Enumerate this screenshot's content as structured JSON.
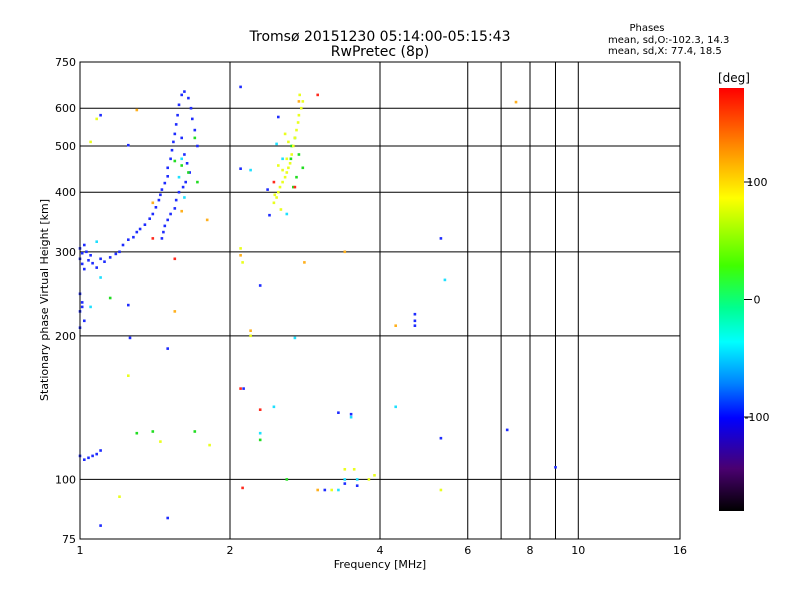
{
  "chart_data": {
    "type": "scatter",
    "title": "Tromsø 20151230 05:14:00-05:15:43",
    "subtitle": "RwPretec (8p)",
    "xlabel": "Frequency [MHz]",
    "ylabel": "Stationary phase Virtual Height [km]",
    "x_scale": "log",
    "y_scale": "log",
    "xlim": [
      1,
      16
    ],
    "ylim": [
      75,
      750
    ],
    "x_ticks": [
      1,
      2,
      4,
      6,
      8,
      10,
      16
    ],
    "x_minor_ticks": [
      7,
      9
    ],
    "y_ticks": [
      75,
      100,
      200,
      300,
      400,
      500,
      600,
      750
    ],
    "grid": true,
    "stats": {
      "heading": "Phases",
      "o_line": "mean, sd,O:-102.3, 14.3",
      "x_line": "mean, sd,X:  77.4, 18.5"
    },
    "colorbar": {
      "label": "[deg]",
      "range": [
        -180,
        180
      ],
      "ticks": [
        100,
        0,
        -100
      ]
    },
    "series": [
      {
        "color": "#1e2cff",
        "points": [
          [
            1.0,
            305
          ],
          [
            1.01,
            298
          ],
          [
            1.02,
            310
          ],
          [
            1.0,
            290
          ],
          [
            1.03,
            300
          ],
          [
            1.04,
            288
          ],
          [
            1.05,
            295
          ],
          [
            1.01,
            283
          ],
          [
            1.02,
            276
          ],
          [
            1.06,
            284
          ],
          [
            1.08,
            278
          ],
          [
            1.1,
            290
          ],
          [
            1.12,
            286
          ],
          [
            1.15,
            292
          ],
          [
            1.18,
            297
          ],
          [
            1.2,
            300
          ],
          [
            1.22,
            310
          ],
          [
            1.25,
            318
          ],
          [
            1.28,
            322
          ],
          [
            1.3,
            330
          ],
          [
            1.32,
            335
          ],
          [
            1.35,
            342
          ],
          [
            1.38,
            352
          ],
          [
            1.4,
            360
          ],
          [
            1.42,
            372
          ],
          [
            1.44,
            385
          ],
          [
            1.45,
            395
          ],
          [
            1.46,
            405
          ],
          [
            1.48,
            418
          ],
          [
            1.5,
            432
          ],
          [
            1.5,
            450
          ],
          [
            1.52,
            470
          ],
          [
            1.53,
            490
          ],
          [
            1.54,
            510
          ],
          [
            1.55,
            530
          ],
          [
            1.56,
            555
          ],
          [
            1.57,
            580
          ],
          [
            1.58,
            610
          ],
          [
            1.6,
            640
          ],
          [
            1.62,
            650
          ],
          [
            1.65,
            630
          ],
          [
            1.67,
            600
          ],
          [
            1.68,
            570
          ],
          [
            1.7,
            540
          ],
          [
            1.72,
            500
          ],
          [
            1.6,
            520
          ],
          [
            1.62,
            480
          ],
          [
            1.64,
            460
          ],
          [
            1.66,
            440
          ],
          [
            1.63,
            420
          ],
          [
            1.61,
            410
          ],
          [
            1.58,
            400
          ],
          [
            1.56,
            385
          ],
          [
            1.55,
            370
          ],
          [
            1.52,
            360
          ],
          [
            1.5,
            350
          ],
          [
            1.48,
            340
          ],
          [
            1.47,
            330
          ],
          [
            1.46,
            320
          ],
          [
            1.0,
            245
          ],
          [
            1.01,
            235
          ],
          [
            1.0,
            225
          ],
          [
            1.02,
            215
          ],
          [
            1.0,
            208
          ],
          [
            1.01,
            230
          ],
          [
            1.0,
            112
          ],
          [
            1.02,
            110
          ],
          [
            1.04,
            111
          ],
          [
            1.06,
            112
          ],
          [
            1.08,
            113
          ],
          [
            1.1,
            115
          ],
          [
            1.25,
            502
          ],
          [
            1.25,
            232
          ],
          [
            1.26,
            198
          ],
          [
            1.5,
            188
          ],
          [
            1.5,
            83
          ],
          [
            1.1,
            80
          ],
          [
            1.1,
            580
          ],
          [
            2.1,
            665
          ],
          [
            2.1,
            448
          ],
          [
            2.13,
            155
          ],
          [
            3.3,
            138
          ],
          [
            3.5,
            137
          ],
          [
            5.3,
            320
          ],
          [
            5.3,
            122
          ],
          [
            4.7,
            222
          ],
          [
            4.7,
            215
          ],
          [
            4.7,
            210
          ],
          [
            7.2,
            127
          ],
          [
            9.0,
            106
          ],
          [
            3.4,
            98
          ],
          [
            3.6,
            97
          ],
          [
            3.1,
            95
          ],
          [
            2.4,
            358
          ],
          [
            2.3,
            255
          ],
          [
            2.5,
            575
          ],
          [
            2.38,
            405
          ]
        ]
      },
      {
        "color": "#1ee0ff",
        "points": [
          [
            1.6,
            470
          ],
          [
            1.58,
            430
          ],
          [
            1.62,
            390
          ],
          [
            2.2,
            445
          ],
          [
            2.3,
            125
          ],
          [
            2.45,
            142
          ],
          [
            2.6,
            360
          ],
          [
            2.7,
            198
          ],
          [
            4.3,
            142
          ],
          [
            5.4,
            262
          ],
          [
            3.5,
            135
          ],
          [
            3.6,
            100
          ],
          [
            3.4,
            100
          ],
          [
            3.3,
            95
          ],
          [
            1.05,
            230
          ],
          [
            1.1,
            265
          ],
          [
            1.08,
            315
          ],
          [
            2.55,
            470
          ],
          [
            2.48,
            505
          ]
        ]
      },
      {
        "color": "#22dd22",
        "points": [
          [
            1.55,
            465
          ],
          [
            1.6,
            455
          ],
          [
            1.65,
            440
          ],
          [
            1.7,
            520
          ],
          [
            1.72,
            420
          ],
          [
            1.3,
            125
          ],
          [
            1.4,
            126
          ],
          [
            1.7,
            126
          ],
          [
            2.3,
            121
          ],
          [
            2.6,
            100
          ],
          [
            2.7,
            520
          ],
          [
            2.75,
            480
          ],
          [
            2.8,
            450
          ],
          [
            2.72,
            430
          ],
          [
            2.68,
            410
          ],
          [
            2.65,
            470
          ],
          [
            2.66,
            500
          ],
          [
            1.15,
            240
          ]
        ]
      },
      {
        "color": "#eaff1e",
        "points": [
          [
            2.45,
            380
          ],
          [
            2.48,
            390
          ],
          [
            2.5,
            400
          ],
          [
            2.52,
            410
          ],
          [
            2.55,
            420
          ],
          [
            2.58,
            430
          ],
          [
            2.6,
            440
          ],
          [
            2.62,
            450
          ],
          [
            2.64,
            460
          ],
          [
            2.66,
            480
          ],
          [
            2.68,
            500
          ],
          [
            2.7,
            520
          ],
          [
            2.72,
            540
          ],
          [
            2.74,
            560
          ],
          [
            2.75,
            580
          ],
          [
            2.78,
            600
          ],
          [
            2.8,
            620
          ],
          [
            2.76,
            640
          ],
          [
            2.46,
            395
          ],
          [
            2.55,
            445
          ],
          [
            2.6,
            470
          ],
          [
            2.62,
            510
          ],
          [
            2.58,
            530
          ],
          [
            2.5,
            455
          ],
          [
            2.53,
            368
          ],
          [
            1.25,
            165
          ],
          [
            1.45,
            120
          ],
          [
            1.82,
            118
          ],
          [
            2.12,
            285
          ],
          [
            2.1,
            305
          ],
          [
            2.2,
            200
          ],
          [
            3.4,
            105
          ],
          [
            3.55,
            105
          ],
          [
            3.8,
            100
          ],
          [
            3.9,
            102
          ],
          [
            3.2,
            95
          ],
          [
            5.3,
            95
          ],
          [
            1.2,
            92
          ],
          [
            1.05,
            510
          ],
          [
            1.08,
            570
          ]
        ]
      },
      {
        "color": "#ffb01e",
        "points": [
          [
            1.3,
            595
          ],
          [
            1.4,
            380
          ],
          [
            1.55,
            225
          ],
          [
            1.8,
            350
          ],
          [
            2.1,
            295
          ],
          [
            2.2,
            205
          ],
          [
            2.82,
            285
          ],
          [
            2.75,
            620
          ],
          [
            3.0,
            95
          ],
          [
            7.5,
            618
          ],
          [
            4.3,
            210
          ],
          [
            3.4,
            300
          ],
          [
            1.6,
            365
          ]
        ]
      },
      {
        "color": "#ff2a1e",
        "points": [
          [
            3.0,
            640
          ],
          [
            1.55,
            290
          ],
          [
            2.45,
            420
          ],
          [
            2.7,
            410
          ],
          [
            2.1,
            155
          ],
          [
            2.3,
            140
          ],
          [
            2.12,
            96
          ],
          [
            1.4,
            320
          ]
        ]
      }
    ]
  }
}
